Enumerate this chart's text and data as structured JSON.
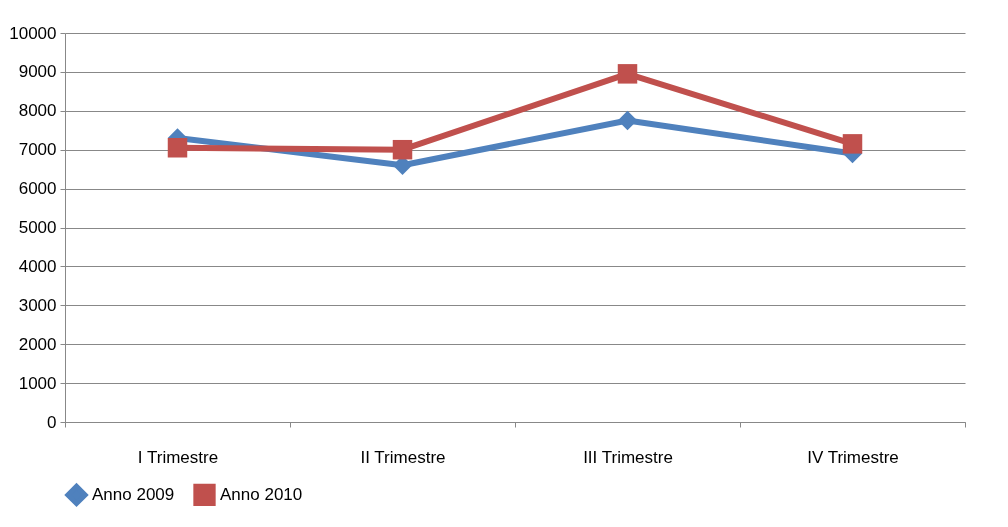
{
  "chart_data": {
    "type": "line",
    "categories": [
      "I Trimestre",
      "II Trimestre",
      "III Trimestre",
      "IV Trimestre"
    ],
    "series": [
      {
        "name": "Anno 2009",
        "color": "#4f81bd",
        "marker": "diamond",
        "values": [
          7300,
          6600,
          7750,
          6900
        ]
      },
      {
        "name": "Anno 2010",
        "color": "#c0504d",
        "marker": "square",
        "values": [
          7050,
          7000,
          8950,
          7150
        ]
      }
    ],
    "ylim": [
      0,
      10000
    ],
    "yticks": [
      0,
      1000,
      2000,
      3000,
      4000,
      5000,
      6000,
      7000,
      8000,
      9000,
      10000
    ],
    "grid": "y",
    "legend": "bottom"
  }
}
